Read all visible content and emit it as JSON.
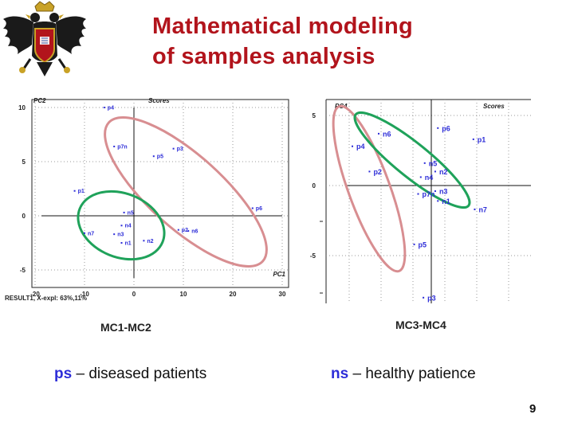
{
  "slide": {
    "title_line1": "Mathematical modeling",
    "title_line2": "of samples analysis",
    "page_number": "9"
  },
  "legend": {
    "ps_key": "ps",
    "ps_text": "– diseased patients",
    "ns_key": "ns",
    "ns_text": "– healthy patience"
  },
  "colors": {
    "title": "#b2141c",
    "points": "#2d2dd8",
    "diseased_ellipse": "#d88e91",
    "healthy_ellipse": "#1fa25a"
  },
  "chart_data": [
    {
      "type": "scatter",
      "caption": "MC1-MC2",
      "plot_title": "Scores",
      "xlabel": "PC1",
      "ylabel": "PC2",
      "footer": "RESULT1, X-expl: 63%,11%",
      "xlim": [
        -22,
        31
      ],
      "ylim": [
        -6.5,
        11
      ],
      "xticks": [
        -20,
        -10,
        0,
        10,
        20,
        30
      ],
      "yticks": [
        10,
        5,
        0,
        -5
      ],
      "grid": true,
      "points": [
        {
          "label": "p4",
          "x": -6,
          "y": 10
        },
        {
          "label": "p7n",
          "x": -4,
          "y": 6.4
        },
        {
          "label": "p3",
          "x": 8,
          "y": 6.2
        },
        {
          "label": "p5",
          "x": 4,
          "y": 5.5
        },
        {
          "label": "p1",
          "x": -12,
          "y": 2.3
        },
        {
          "label": "p6",
          "x": 24,
          "y": 0.7
        },
        {
          "label": "n5",
          "x": -2,
          "y": 0.3
        },
        {
          "label": "n4",
          "x": -2.5,
          "y": -0.9
        },
        {
          "label": "n7",
          "x": -10,
          "y": -1.6
        },
        {
          "label": "n3",
          "x": -4,
          "y": -1.7
        },
        {
          "label": "n1",
          "x": -2.5,
          "y": -2.5
        },
        {
          "label": "n2",
          "x": 2,
          "y": -2.3
        },
        {
          "label": "p2",
          "x": 9,
          "y": -1.3
        },
        {
          "label": "n6",
          "x": 11,
          "y": -1.4
        }
      ]
    },
    {
      "type": "scatter",
      "caption": "MC3-MC4",
      "plot_title": "Scores",
      "xlabel": "",
      "ylabel": "PC4",
      "ylim": [
        -8.5,
        6
      ],
      "yticks": [
        5,
        0,
        -5
      ],
      "grid": true,
      "points": [
        {
          "label": "n6",
          "x": -4,
          "y": 3.7
        },
        {
          "label": "p4",
          "x": -6,
          "y": 2.8
        },
        {
          "label": "p2",
          "x": -4.7,
          "y": 1
        },
        {
          "label": "n5",
          "x": -0.5,
          "y": 1.6
        },
        {
          "label": "n2",
          "x": 0.3,
          "y": 1
        },
        {
          "label": "n4",
          "x": -0.8,
          "y": 0.6
        },
        {
          "label": "n3",
          "x": 0.3,
          "y": -0.4
        },
        {
          "label": "p7n",
          "x": -1,
          "y": -0.6
        },
        {
          "label": "n1",
          "x": 0.5,
          "y": -1.1
        },
        {
          "label": "n7",
          "x": 3.3,
          "y": -1.7
        },
        {
          "label": "p5",
          "x": -1.3,
          "y": -4.2
        },
        {
          "label": "p6",
          "x": 0.5,
          "y": 4.1
        },
        {
          "label": "p1",
          "x": 3.2,
          "y": 3.3
        },
        {
          "label": "p3",
          "x": -0.6,
          "y": -8
        }
      ]
    }
  ]
}
